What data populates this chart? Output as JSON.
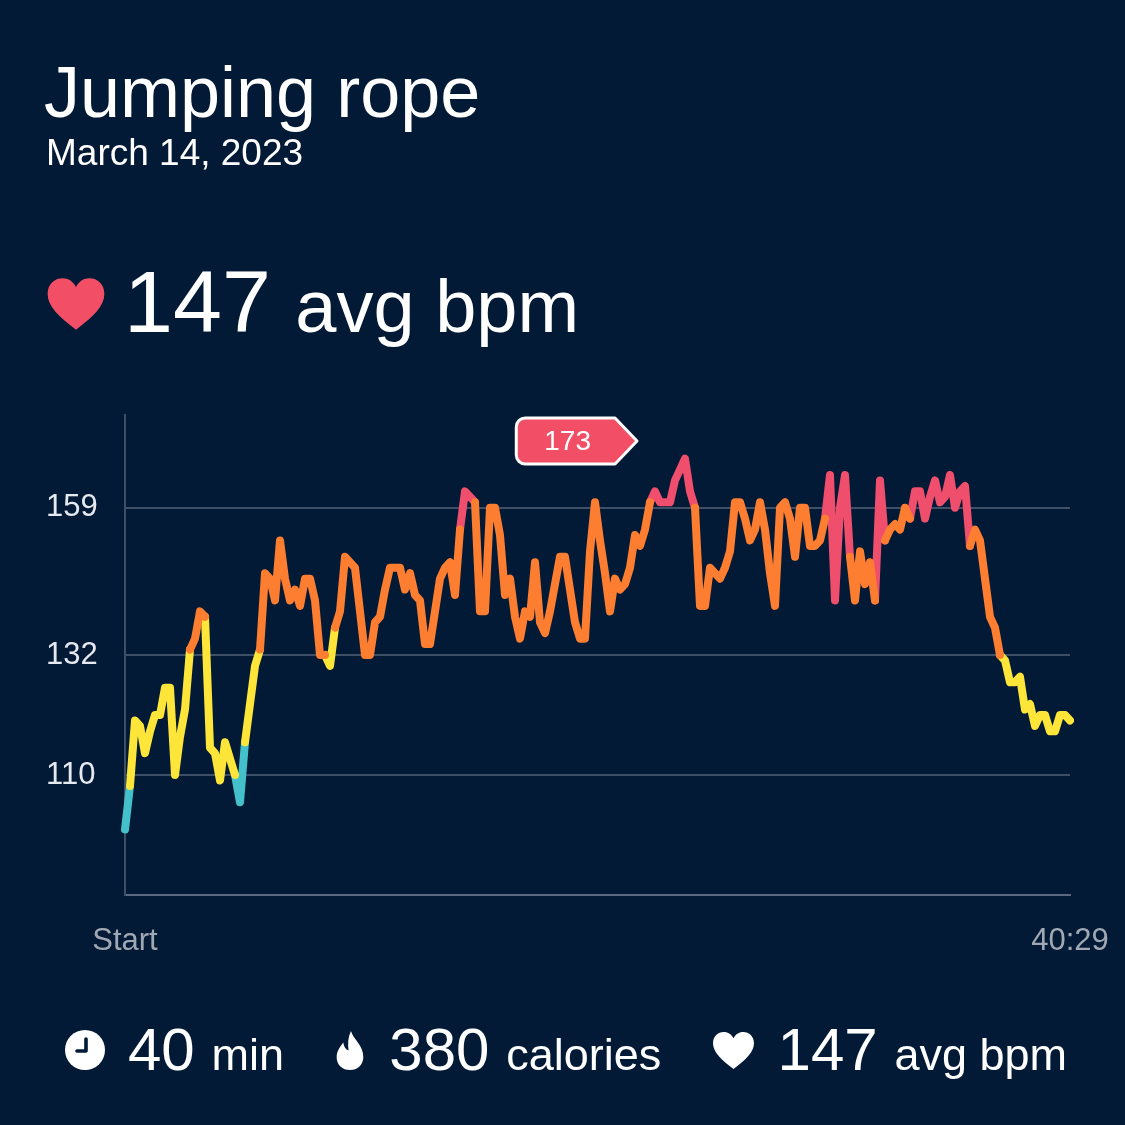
{
  "chart_data": {
    "type": "line",
    "title": "Jumping rope",
    "subtitle": "March 14, 2023",
    "annotations": [
      "147 avg bpm",
      "173",
      "40 min",
      "380 calories",
      "147 avg bpm"
    ],
    "categories": [
      "Start",
      null,
      null,
      null,
      null,
      null,
      null,
      null,
      null,
      null,
      null,
      null,
      null,
      null,
      null,
      null,
      null,
      null,
      null,
      null,
      null,
      null,
      null,
      null,
      null,
      null,
      null,
      null,
      null,
      null,
      null,
      null,
      null,
      null,
      null,
      null,
      null,
      null,
      null,
      null,
      null,
      null,
      null,
      null,
      null,
      null,
      null,
      null,
      null,
      null,
      null,
      null,
      null,
      null,
      null,
      null,
      null,
      null,
      null,
      null,
      null,
      null,
      null,
      null,
      null,
      null,
      null,
      null,
      null,
      null,
      null,
      null,
      null,
      null,
      null,
      null,
      null,
      null,
      null,
      null,
      null,
      null,
      null,
      null,
      null,
      null,
      null,
      null,
      null,
      null,
      null,
      null,
      null,
      null,
      null,
      null,
      null,
      null,
      null,
      null,
      null,
      null,
      null,
      null,
      null,
      null,
      null,
      null,
      null,
      null,
      null,
      null,
      null,
      null,
      null,
      null,
      null,
      null,
      null,
      null,
      null,
      null,
      null,
      null,
      null,
      null,
      null,
      null,
      null,
      null,
      null,
      null,
      null,
      null,
      null,
      null,
      null,
      null,
      null,
      null,
      null,
      null,
      null,
      null,
      null,
      null,
      null,
      null,
      null,
      null,
      null,
      null,
      null,
      null,
      null,
      null,
      null,
      null,
      null,
      null,
      null,
      null,
      null,
      null,
      null,
      null,
      null,
      null,
      null,
      null,
      null,
      null,
      null,
      null,
      null,
      null,
      null,
      null,
      null,
      null,
      null,
      null,
      null,
      null,
      null,
      null,
      null,
      null,
      null,
      "40:29"
    ],
    "series": [
      {
        "color": "#fd7d31",
        "values": [
          null,
          null,
          null,
          null,
          null,
          null,
          null,
          null,
          null,
          null,
          null,
          null,
          null,
          133,
          135,
          140,
          139,
          null,
          null,
          null,
          null,
          null,
          null,
          null,
          null,
          null,
          null,
          133,
          147,
          146,
          142,
          153,
          146,
          142,
          144,
          141,
          146,
          146,
          142,
          132,
          132,
          null,
          137,
          140,
          150,
          149,
          148,
          140,
          132,
          132,
          138,
          139,
          144,
          148,
          148,
          148,
          144,
          147,
          143,
          142,
          134,
          134,
          140,
          146,
          148,
          149,
          143,
          155,
          null,
          null,
          160,
          140,
          140,
          159,
          159,
          154,
          143,
          146,
          139,
          135,
          140,
          139,
          149,
          138,
          136,
          140,
          145,
          150,
          150,
          144,
          138,
          135,
          135,
          151,
          160,
          153,
          147,
          140,
          146,
          144,
          145,
          148,
          154,
          152,
          155,
          160,
          null,
          null,
          null,
          null,
          null,
          null,
          null,
          null,
          159,
          141,
          141,
          148,
          147,
          146,
          148,
          151,
          160,
          160,
          157,
          153,
          155,
          160,
          155,
          147,
          141,
          159,
          160,
          157,
          150,
          159,
          159,
          152,
          152,
          153,
          157,
          null,
          null,
          null,
          null,
          150,
          142,
          151,
          145,
          149,
          142,
          null,
          153,
          155,
          156,
          155,
          159,
          157,
          null,
          null,
          null,
          null,
          null,
          null,
          null,
          null,
          null,
          null,
          null,
          152,
          155,
          153,
          146,
          139,
          137,
          132,
          null,
          null,
          null,
          null,
          null,
          null,
          null,
          null,
          null,
          null,
          null,
          null,
          null,
          null
        ]
      },
      {
        "color": "#fde53a",
        "values": [
          null,
          108,
          120,
          119,
          114,
          118,
          121,
          121,
          126,
          126,
          110,
          117,
          122,
          133,
          null,
          null,
          139,
          115,
          114,
          109,
          116,
          113,
          110,
          null,
          116,
          123,
          130,
          133,
          null,
          null,
          null,
          null,
          null,
          null,
          null,
          null,
          null,
          null,
          null,
          null,
          132,
          130,
          137,
          null,
          null,
          null,
          null,
          null,
          null,
          null,
          null,
          null,
          null,
          null,
          null,
          null,
          null,
          null,
          null,
          null,
          null,
          null,
          null,
          null,
          null,
          null,
          null,
          null,
          null,
          null,
          null,
          null,
          null,
          null,
          null,
          null,
          null,
          null,
          null,
          null,
          null,
          null,
          null,
          null,
          null,
          null,
          null,
          null,
          null,
          null,
          null,
          null,
          null,
          null,
          null,
          null,
          null,
          null,
          null,
          null,
          null,
          null,
          null,
          null,
          null,
          null,
          null,
          null,
          null,
          null,
          null,
          null,
          null,
          null,
          null,
          null,
          null,
          null,
          null,
          null,
          null,
          null,
          null,
          null,
          null,
          null,
          null,
          null,
          null,
          null,
          null,
          null,
          null,
          null,
          null,
          null,
          null,
          null,
          null,
          null,
          null,
          null,
          null,
          null,
          null,
          null,
          null,
          null,
          null,
          null,
          null,
          null,
          null,
          null,
          null,
          null,
          null,
          null,
          null,
          null,
          null,
          null,
          null,
          null,
          null,
          null,
          null,
          null,
          null,
          null,
          null,
          null,
          null,
          null,
          null,
          132,
          131,
          127,
          127,
          128,
          122,
          123,
          119,
          121,
          121,
          118,
          118,
          121,
          121,
          120
        ]
      },
      {
        "color": "#44c0cb",
        "values": [
          100,
          108,
          null,
          null,
          null,
          null,
          null,
          null,
          null,
          null,
          null,
          null,
          null,
          null,
          null,
          null,
          null,
          null,
          null,
          null,
          null,
          null,
          110,
          105,
          116,
          null,
          null,
          null,
          null,
          null,
          null,
          null,
          null,
          null,
          null,
          null,
          null,
          null,
          null,
          null,
          null,
          null,
          null,
          null,
          null,
          null,
          null,
          null,
          null,
          null,
          null,
          null,
          null,
          null,
          null,
          null,
          null,
          null,
          null,
          null,
          null,
          null,
          null,
          null,
          null,
          null,
          null,
          null,
          null,
          null,
          null,
          null,
          null,
          null,
          null,
          null,
          null,
          null,
          null,
          null,
          null,
          null,
          null,
          null,
          null,
          null,
          null,
          null,
          null,
          null,
          null,
          null,
          null,
          null,
          null,
          null,
          null,
          null,
          null,
          null,
          null,
          null,
          null,
          null,
          null,
          null,
          null,
          null,
          null,
          null,
          null,
          null,
          null,
          null,
          null,
          null,
          null,
          null,
          null,
          null,
          null,
          null,
          null,
          null,
          null,
          null,
          null,
          null,
          null,
          null,
          null,
          null,
          null,
          null,
          null,
          null,
          null,
          null,
          null,
          null,
          null,
          null,
          null,
          null,
          null,
          null,
          null,
          null,
          null,
          null,
          null,
          null,
          null,
          null,
          null,
          null,
          null,
          null,
          null,
          null,
          null,
          null,
          null,
          null,
          null,
          null,
          null,
          null,
          null,
          null,
          null,
          null,
          null,
          null,
          null,
          null,
          null,
          null,
          null,
          null,
          null,
          null,
          null,
          null,
          null,
          null,
          null,
          null,
          null,
          null
        ]
      },
      {
        "color": "#ef4e6c",
        "values": [
          null,
          null,
          null,
          null,
          null,
          null,
          null,
          null,
          null,
          null,
          null,
          null,
          null,
          null,
          null,
          null,
          null,
          null,
          null,
          null,
          null,
          null,
          null,
          null,
          null,
          null,
          null,
          null,
          null,
          null,
          null,
          null,
          null,
          null,
          null,
          null,
          null,
          null,
          null,
          null,
          null,
          null,
          null,
          null,
          null,
          null,
          null,
          null,
          null,
          null,
          null,
          null,
          null,
          null,
          null,
          null,
          null,
          null,
          null,
          null,
          null,
          null,
          null,
          null,
          null,
          null,
          null,
          155,
          162,
          161,
          160,
          null,
          null,
          null,
          null,
          null,
          null,
          null,
          null,
          null,
          null,
          null,
          null,
          null,
          null,
          null,
          null,
          null,
          null,
          null,
          null,
          null,
          null,
          null,
          null,
          null,
          null,
          null,
          null,
          null,
          null,
          null,
          null,
          null,
          null,
          160,
          162,
          160,
          160,
          160,
          164,
          166,
          168,
          162,
          159,
          null,
          null,
          null,
          null,
          null,
          null,
          null,
          null,
          null,
          null,
          null,
          null,
          null,
          null,
          null,
          null,
          null,
          null,
          null,
          null,
          null,
          null,
          null,
          null,
          null,
          157,
          165,
          142,
          159,
          165,
          150,
          null,
          null,
          null,
          null,
          142,
          164,
          153,
          null,
          null,
          null,
          null,
          157,
          162,
          162,
          157,
          161,
          164,
          160,
          161,
          165,
          159,
          162,
          163,
          152,
          null,
          null,
          null,
          null,
          null,
          null,
          null,
          null,
          null,
          null,
          null,
          null,
          null,
          null,
          null,
          null,
          null,
          null,
          null,
          null
        ]
      }
    ],
    "ylim": [
      88,
      176
    ],
    "yticks": [
      110,
      132,
      159
    ],
    "grid": "y"
  }
}
